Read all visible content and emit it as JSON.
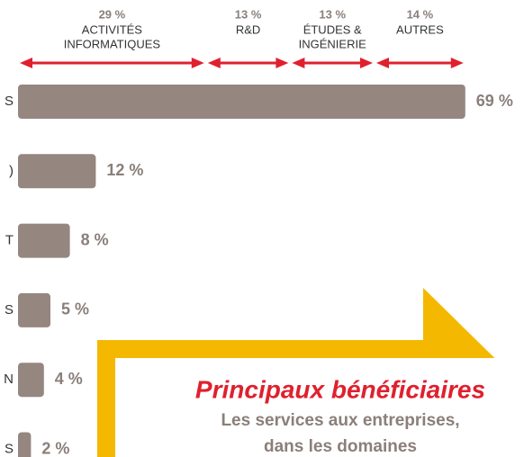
{
  "chart_data": {
    "type": "bar",
    "categories": [
      "S",
      ")",
      "T",
      "S",
      "N",
      "S"
    ],
    "values": [
      69,
      12,
      8,
      5,
      4,
      2
    ],
    "value_labels": [
      "69 %",
      "12 %",
      "8 %",
      "5 %",
      "4 %",
      "2 %"
    ],
    "color": "#958680",
    "breakdown": [
      {
        "value": 29,
        "label": "29 %",
        "name": [
          "ACTIVITÉS",
          "INFORMATIQUES"
        ]
      },
      {
        "value": 13,
        "label": "13 %",
        "name": [
          "R&D"
        ]
      },
      {
        "value": 13,
        "label": "13 %",
        "name": [
          "ÉTUDES &",
          "INGÉNIERIE"
        ]
      },
      {
        "value": 14,
        "label": "14 %",
        "name": [
          "AUTRES"
        ]
      }
    ],
    "breakdown_color": "#e0202e",
    "callout": {
      "title": "Principaux bénéficiaires",
      "lines": [
        "Les services aux entreprises,",
        "dans les domaines"
      ]
    }
  }
}
